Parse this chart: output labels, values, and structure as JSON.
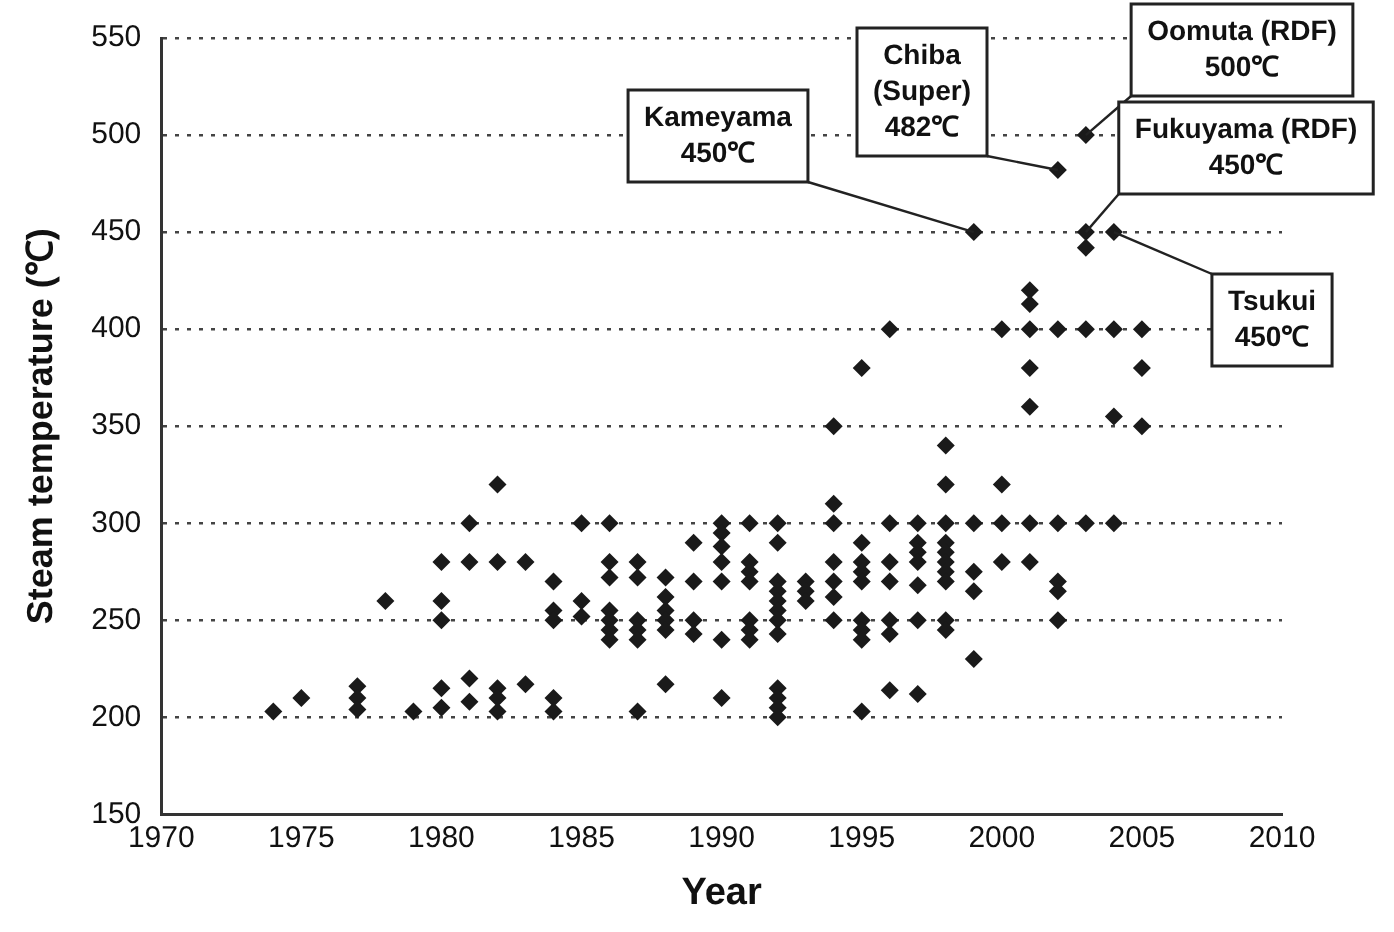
{
  "chart_data": {
    "type": "scatter",
    "xlabel": "Year",
    "ylabel": "Steam temperature (℃)",
    "xlim": [
      1970,
      2010
    ],
    "xticks": [
      1970,
      1975,
      1980,
      1985,
      1990,
      1995,
      2000,
      2005,
      2010
    ],
    "ylim": [
      150,
      550
    ],
    "yticks": [
      150,
      200,
      250,
      300,
      350,
      400,
      450,
      500,
      550
    ],
    "grid": "y",
    "legend": false,
    "marker": "diamond",
    "series": [
      {
        "color": "#1a1a1a",
        "x": [
          1974,
          1975,
          1977,
          1977,
          1977,
          1978,
          1979,
          1980,
          1980,
          1980,
          1980,
          1980,
          1981,
          1981,
          1981,
          1981,
          1982,
          1982,
          1982,
          1982,
          1982,
          1983,
          1983,
          1984,
          1984,
          1984,
          1984,
          1984,
          1985,
          1985,
          1985,
          1986,
          1986,
          1986,
          1986,
          1986,
          1986,
          1986,
          1987,
          1987,
          1987,
          1987,
          1987,
          1987,
          1988,
          1988,
          1988,
          1988,
          1988,
          1988,
          1989,
          1989,
          1989,
          1989,
          1990,
          1990,
          1990,
          1990,
          1990,
          1990,
          1990,
          1991,
          1991,
          1991,
          1991,
          1991,
          1991,
          1991,
          1992,
          1992,
          1992,
          1992,
          1992,
          1992,
          1992,
          1992,
          1992,
          1992,
          1992,
          1992,
          1993,
          1993,
          1993,
          1994,
          1994,
          1994,
          1994,
          1994,
          1994,
          1994,
          1995,
          1995,
          1995,
          1995,
          1995,
          1995,
          1995,
          1995,
          1995,
          1996,
          1996,
          1996,
          1996,
          1996,
          1996,
          1996,
          1997,
          1997,
          1997,
          1997,
          1997,
          1997,
          1997,
          1998,
          1998,
          1998,
          1998,
          1998,
          1998,
          1998,
          1998,
          1998,
          1998,
          1999,
          1999,
          1999,
          1999,
          1999,
          2000,
          2000,
          2000,
          2000,
          2001,
          2001,
          2001,
          2001,
          2001,
          2001,
          2001,
          2002,
          2002,
          2002,
          2002,
          2002,
          2002,
          2003,
          2003,
          2003,
          2003,
          2003,
          2004,
          2004,
          2004,
          2004,
          2005,
          2005,
          2005
        ],
        "values": [
          203,
          210,
          216,
          210,
          204,
          260,
          203,
          280,
          260,
          250,
          215,
          205,
          300,
          280,
          220,
          208,
          320,
          280,
          215,
          210,
          203,
          280,
          217,
          270,
          255,
          250,
          210,
          203,
          300,
          260,
          252,
          300,
          280,
          272,
          255,
          250,
          245,
          240,
          280,
          272,
          250,
          245,
          240,
          203,
          272,
          262,
          255,
          250,
          245,
          217,
          290,
          270,
          250,
          243,
          300,
          295,
          288,
          280,
          270,
          240,
          210,
          300,
          280,
          275,
          270,
          250,
          245,
          240,
          300,
          290,
          270,
          265,
          260,
          255,
          250,
          243,
          215,
          210,
          205,
          200,
          270,
          265,
          260,
          350,
          310,
          300,
          280,
          270,
          262,
          250,
          380,
          290,
          280,
          275,
          270,
          250,
          245,
          240,
          203,
          400,
          300,
          280,
          270,
          250,
          243,
          214,
          300,
          290,
          285,
          280,
          268,
          250,
          212,
          340,
          320,
          300,
          290,
          285,
          280,
          275,
          270,
          250,
          245,
          450,
          300,
          275,
          265,
          230,
          400,
          320,
          300,
          280,
          420,
          413,
          400,
          380,
          360,
          300,
          280,
          482,
          400,
          300,
          270,
          265,
          250,
          500,
          450,
          442,
          400,
          300,
          450,
          400,
          355,
          300,
          400,
          380,
          350
        ]
      }
    ],
    "annotations": [
      {
        "text": "Kameyama\n450℃",
        "x": 1999,
        "y": 450
      },
      {
        "text": "Chiba\n(Super)\n482℃",
        "x": 2002,
        "y": 482
      },
      {
        "text": "Oomuta (RDF)\n500℃",
        "x": 2003,
        "y": 500
      },
      {
        "text": "Fukuyama (RDF)\n450℃",
        "x": 2003,
        "y": 450
      },
      {
        "text": "Tsukui\n450℃",
        "x": 2004,
        "y": 450
      }
    ]
  }
}
